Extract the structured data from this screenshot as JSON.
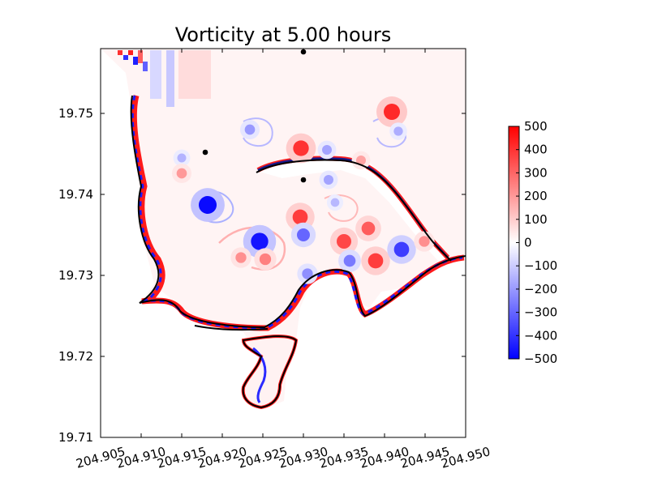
{
  "chart_data": {
    "type": "heatmap",
    "title": "Vorticity at 5.00 hours",
    "xlabel": "",
    "ylabel": "",
    "xlim": [
      204.905,
      204.95
    ],
    "ylim": [
      19.71,
      19.758
    ],
    "x_ticks": [
      "204.905",
      "204.910",
      "204.915",
      "204.920",
      "204.925",
      "204.930",
      "204.935",
      "204.940",
      "204.945",
      "204.950"
    ],
    "y_ticks": [
      "19.71",
      "19.72",
      "19.73",
      "19.74",
      "19.75"
    ],
    "colorbar": {
      "min": -500,
      "max": 500,
      "ticks": [
        "500",
        "400",
        "300",
        "200",
        "100",
        "0",
        "−100",
        "−200",
        "−300",
        "−400",
        "−500"
      ],
      "colors": {
        "low": "#0000ff",
        "mid": "#ffffff",
        "high": "#ff0000"
      }
    },
    "markers": [
      {
        "x": 204.93,
        "y": 19.7576
      },
      {
        "x": 204.9179,
        "y": 19.7452
      },
      {
        "x": 204.93,
        "y": 19.7418
      }
    ],
    "eddies": [
      {
        "x": 204.9182,
        "y": 19.7387,
        "vorticity": -480
      },
      {
        "x": 204.9246,
        "y": 19.7342,
        "vorticity": -460
      },
      {
        "x": 204.9409,
        "y": 19.7502,
        "vorticity": 420
      },
      {
        "x": 204.9297,
        "y": 19.7457,
        "vorticity": 400
      },
      {
        "x": 204.9296,
        "y": 19.7372,
        "vorticity": 380
      },
      {
        "x": 204.935,
        "y": 19.7342,
        "vorticity": 360
      },
      {
        "x": 204.938,
        "y": 19.7358,
        "vorticity": 320
      },
      {
        "x": 204.9389,
        "y": 19.7318,
        "vorticity": 380
      },
      {
        "x": 204.9421,
        "y": 19.7332,
        "vorticity": -380
      },
      {
        "x": 204.93,
        "y": 19.735,
        "vorticity": -300
      },
      {
        "x": 204.9357,
        "y": 19.7318,
        "vorticity": -260
      },
      {
        "x": 204.9305,
        "y": 19.7302,
        "vorticity": -220
      },
      {
        "x": 204.9253,
        "y": 19.732,
        "vorticity": 250
      },
      {
        "x": 204.915,
        "y": 19.7445,
        "vorticity": -150
      },
      {
        "x": 204.9234,
        "y": 19.748,
        "vorticity": -200
      },
      {
        "x": 204.9329,
        "y": 19.7455,
        "vorticity": -180
      },
      {
        "x": 204.9331,
        "y": 19.7418,
        "vorticity": -180
      },
      {
        "x": 204.9223,
        "y": 19.7322,
        "vorticity": 220
      },
      {
        "x": 204.9371,
        "y": 19.7442,
        "vorticity": 180
      },
      {
        "x": 204.915,
        "y": 19.7426,
        "vorticity": 200
      },
      {
        "x": 204.9417,
        "y": 19.7478,
        "vorticity": -160
      },
      {
        "x": 204.9339,
        "y": 19.739,
        "vorticity": -140
      },
      {
        "x": 204.9449,
        "y": 19.7342,
        "vorticity": 220
      }
    ]
  }
}
